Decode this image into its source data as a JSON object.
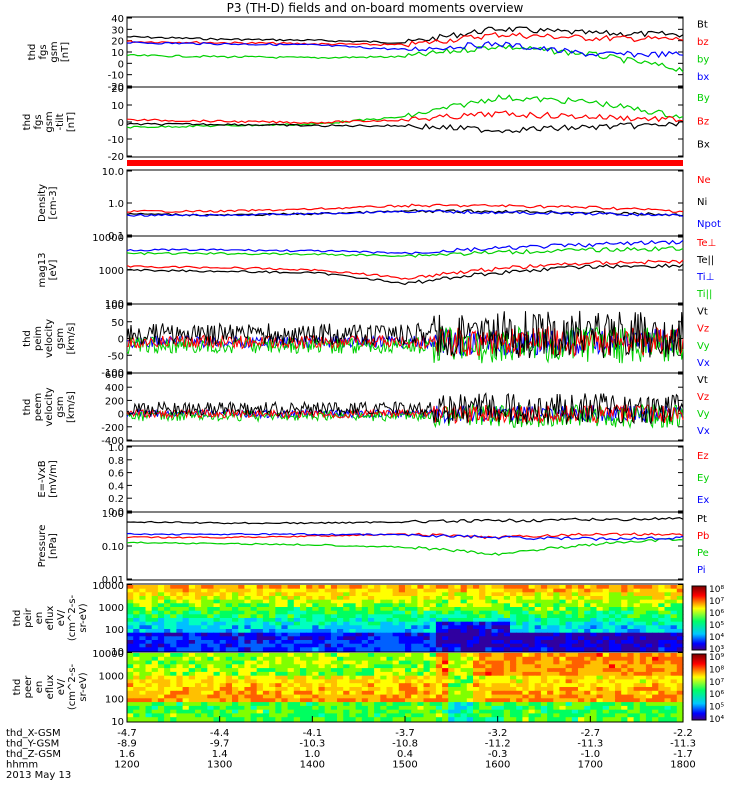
{
  "title": "P3 (TH-D) fields and on-board moments overview",
  "panels": [
    {
      "id": "fgs",
      "ylabel": [
        "thd",
        "fgs",
        "gsm",
        "[nT]"
      ],
      "ticks": [
        "40",
        "30",
        "20",
        "10",
        "0",
        "-10",
        "-20"
      ],
      "legend": [
        {
          "t": "Bt",
          "c": "#000000"
        },
        {
          "t": "bz",
          "c": "#ff0000"
        },
        {
          "t": "by",
          "c": "#00d000"
        },
        {
          "t": "bx",
          "c": "#0000ff"
        }
      ]
    },
    {
      "id": "fgs_tilt",
      "ylabel": [
        "thd",
        "fgs",
        "gsm",
        "-tilt",
        "[nT]"
      ],
      "ticks": [
        "20",
        "10",
        "0",
        "-10",
        "-20"
      ],
      "legend": [
        {
          "t": "By",
          "c": "#00d000"
        },
        {
          "t": "Bz",
          "c": "#ff0000"
        },
        {
          "t": "Bx",
          "c": "#000000"
        }
      ]
    },
    {
      "id": "density",
      "ylabel": [
        "Density",
        "[cm-3]"
      ],
      "ticks": [
        "10.0",
        "1.0",
        "0.1"
      ],
      "legend": [
        {
          "t": "Ne",
          "c": "#ff0000"
        },
        {
          "t": "Ni",
          "c": "#000000"
        },
        {
          "t": "Npot",
          "c": "#0000ff"
        }
      ]
    },
    {
      "id": "temp",
      "ylabel": [
        "mag13",
        "[eV]"
      ],
      "ticks": [
        "10000",
        "1000",
        "100"
      ],
      "legend": [
        {
          "t": "Te⊥",
          "c": "#ff0000"
        },
        {
          "t": "Te||",
          "c": "#000000"
        },
        {
          "t": "Ti⊥",
          "c": "#0000ff"
        },
        {
          "t": "Ti||",
          "c": "#00d000"
        }
      ]
    },
    {
      "id": "vi",
      "ylabel": [
        "thd",
        "peim",
        "velocity",
        "gsm",
        "[km/s]"
      ],
      "ticks": [
        "100",
        "50",
        "0",
        "-50",
        "-100"
      ],
      "legend": [
        {
          "t": "Vt",
          "c": "#000000"
        },
        {
          "t": "Vz",
          "c": "#ff0000"
        },
        {
          "t": "Vy",
          "c": "#00d000"
        },
        {
          "t": "Vx",
          "c": "#0000ff"
        }
      ]
    },
    {
      "id": "ve",
      "ylabel": [
        "thd",
        "peem",
        "velocity",
        "gsm",
        "[km/s]"
      ],
      "ticks": [
        "600",
        "400",
        "200",
        "0",
        "-200",
        "-400"
      ],
      "legend": [
        {
          "t": "Vt",
          "c": "#000000"
        },
        {
          "t": "Vz",
          "c": "#ff0000"
        },
        {
          "t": "Vy",
          "c": "#00d000"
        },
        {
          "t": "Vx",
          "c": "#0000ff"
        }
      ]
    },
    {
      "id": "efield",
      "ylabel": [
        "E=-VxB",
        "[mV/m]"
      ],
      "ticks": [
        "1.0",
        "0.8",
        "0.6",
        "0.4",
        "0.2",
        "0.0"
      ],
      "legend": [
        {
          "t": "Ez",
          "c": "#ff0000"
        },
        {
          "t": "Ey",
          "c": "#00d000"
        },
        {
          "t": "Ex",
          "c": "#0000ff"
        }
      ]
    },
    {
      "id": "pressure",
      "ylabel": [
        "Pressure",
        "[nPa]"
      ],
      "ticks": [
        "1.00",
        "0.10",
        "0.01"
      ],
      "legend": [
        {
          "t": "Pt",
          "c": "#000000"
        },
        {
          "t": "Pb",
          "c": "#ff0000"
        },
        {
          "t": "Pe",
          "c": "#00d000"
        },
        {
          "t": "Pi",
          "c": "#0000ff"
        }
      ]
    },
    {
      "id": "ion_spec",
      "ylabel": [
        "thd",
        "peir",
        "en",
        "eflux",
        "eV/",
        "(cm^2-s-",
        "sr-eV)"
      ],
      "ticks": [
        "10000",
        "1000",
        "100",
        "10"
      ],
      "cbar": [
        "10⁸",
        "10⁷",
        "10⁶",
        "10⁵",
        "10⁴",
        "10³"
      ]
    },
    {
      "id": "ele_spec",
      "ylabel": [
        "thd",
        "peer",
        "en",
        "eflux",
        "eV/",
        "(cm^2-s-",
        "sr-eV)"
      ],
      "ticks": [
        "10000",
        "1000",
        "100",
        "10"
      ],
      "cbar": [
        "10⁹",
        "10⁸",
        "10⁷",
        "10⁶",
        "10⁵",
        "10⁴"
      ]
    }
  ],
  "footer": {
    "rows": [
      {
        "label": "thd_X-GSM",
        "values": [
          "-4.7",
          "-4.4",
          "-4.1",
          "-3.7",
          "-3.2",
          "-2.7",
          "-2.2"
        ]
      },
      {
        "label": "thd_Y-GSM",
        "values": [
          "-8.9",
          "-9.7",
          "-10.3",
          "-10.8",
          "-11.2",
          "-11.3",
          "-11.3"
        ]
      },
      {
        "label": "thd_Z-GSM",
        "values": [
          "1.6",
          "1.4",
          "1.0",
          "0.4",
          "-0.3",
          "-1.0",
          "-1.7"
        ]
      },
      {
        "label": "hhmm",
        "values": [
          "1200",
          "1300",
          "1400",
          "1500",
          "1600",
          "1700",
          "1800"
        ]
      }
    ],
    "date": "2013 May 13"
  },
  "chart_data": {
    "type": "line",
    "title": "P3 (TH-D) fields and on-board moments overview",
    "x_label": "hhmm",
    "x": [
      "1200",
      "1300",
      "1400",
      "1500",
      "1600",
      "1700",
      "1800"
    ],
    "series": [
      {
        "name": "Bt",
        "panel": "fgs",
        "values": [
          23,
          21,
          20,
          18,
          30,
          26,
          25
        ]
      },
      {
        "name": "bz",
        "panel": "fgs",
        "values": [
          19,
          18,
          17,
          16,
          25,
          22,
          21
        ]
      },
      {
        "name": "by",
        "panel": "fgs",
        "values": [
          7,
          6,
          5,
          6,
          15,
          8,
          -5
        ]
      },
      {
        "name": "bx",
        "panel": "fgs",
        "values": [
          18,
          17,
          16,
          12,
          17,
          8,
          8
        ]
      },
      {
        "name": "By",
        "panel": "fgs_tilt",
        "values": [
          -5,
          -4,
          -3,
          2,
          15,
          12,
          2
        ]
      },
      {
        "name": "Bz",
        "panel": "fgs_tilt",
        "values": [
          0,
          -1,
          -2,
          0,
          4,
          2,
          0
        ]
      },
      {
        "name": "Bx",
        "panel": "fgs_tilt",
        "values": [
          -3,
          -3,
          -4,
          -4,
          -7,
          -5,
          -3
        ]
      },
      {
        "name": "Ne",
        "panel": "density",
        "values": [
          0.6,
          0.6,
          0.7,
          0.9,
          0.9,
          0.8,
          0.6
        ]
      },
      {
        "name": "Ni",
        "panel": "density",
        "values": [
          0.5,
          0.45,
          0.5,
          0.6,
          0.6,
          0.55,
          0.45
        ]
      },
      {
        "name": "Npot",
        "panel": "density",
        "values": [
          0.45,
          0.45,
          0.5,
          0.6,
          0.55,
          0.5,
          0.45
        ]
      },
      {
        "name": "Ti⊥",
        "panel": "temp",
        "values": [
          4500,
          4500,
          4200,
          3600,
          5000,
          6500,
          8000
        ]
      },
      {
        "name": "Ti||",
        "panel": "temp",
        "values": [
          3500,
          3500,
          3300,
          3000,
          3800,
          4500,
          5000
        ]
      },
      {
        "name": "Te⊥",
        "panel": "temp",
        "values": [
          1400,
          1300,
          1100,
          600,
          1200,
          1800,
          2000
        ]
      },
      {
        "name": "Te||",
        "panel": "temp",
        "values": [
          1100,
          1000,
          900,
          400,
          900,
          1400,
          1500
        ]
      },
      {
        "name": "Pt",
        "panel": "pressure",
        "values": [
          0.6,
          0.55,
          0.55,
          0.6,
          0.65,
          0.7,
          0.75
        ]
      },
      {
        "name": "Pb",
        "panel": "pressure",
        "values": [
          0.2,
          0.2,
          0.22,
          0.25,
          0.2,
          0.25,
          0.25
        ]
      },
      {
        "name": "Pe",
        "panel": "pressure",
        "values": [
          0.14,
          0.13,
          0.12,
          0.1,
          0.06,
          0.12,
          0.18
        ]
      },
      {
        "name": "Pi",
        "panel": "pressure",
        "values": [
          0.25,
          0.25,
          0.25,
          0.24,
          0.2,
          0.18,
          0.2
        ]
      }
    ]
  }
}
